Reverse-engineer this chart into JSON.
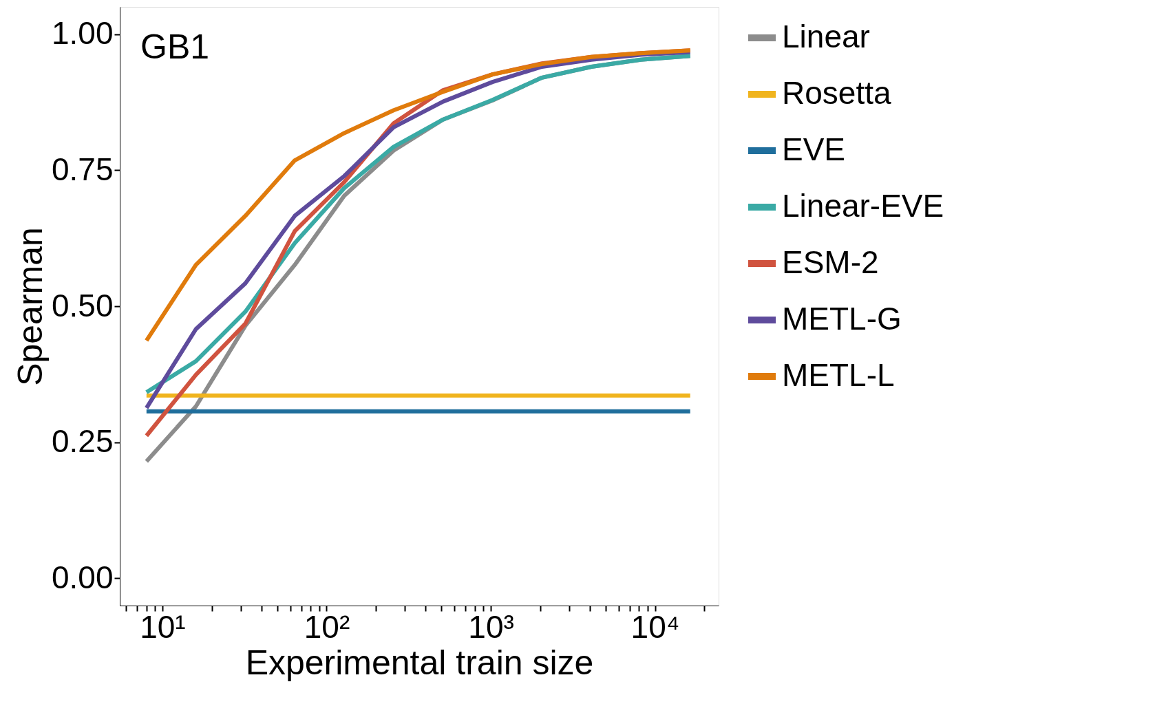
{
  "chart_data": {
    "type": "line",
    "xlabel": "Experimental train size",
    "ylabel": "Spearman",
    "annotations": [
      "GB1"
    ],
    "x": [
      8,
      16,
      32,
      64,
      128,
      256,
      512,
      1024,
      2048,
      4096,
      8192,
      16384
    ],
    "xlim": [
      5.5,
      24400
    ],
    "xticks": [
      {
        "value": 6,
        "label": null
      },
      {
        "value": 7,
        "label": null
      },
      {
        "value": 8,
        "label": null
      },
      {
        "value": 9,
        "label": null
      },
      {
        "value": 10,
        "label": "10¹"
      },
      {
        "value": 20,
        "label": null
      },
      {
        "value": 30,
        "label": null
      },
      {
        "value": 40,
        "label": null
      },
      {
        "value": 50,
        "label": null
      },
      {
        "value": 60,
        "label": null
      },
      {
        "value": 70,
        "label": null
      },
      {
        "value": 80,
        "label": null
      },
      {
        "value": 90,
        "label": null
      },
      {
        "value": 100,
        "label": "10²"
      },
      {
        "value": 200,
        "label": null
      },
      {
        "value": 300,
        "label": null
      },
      {
        "value": 400,
        "label": null
      },
      {
        "value": 500,
        "label": null
      },
      {
        "value": 600,
        "label": null
      },
      {
        "value": 700,
        "label": null
      },
      {
        "value": 800,
        "label": null
      },
      {
        "value": 900,
        "label": null
      },
      {
        "value": 1000,
        "label": "10³"
      },
      {
        "value": 2000,
        "label": null
      },
      {
        "value": 3000,
        "label": null
      },
      {
        "value": 4000,
        "label": null
      },
      {
        "value": 5000,
        "label": null
      },
      {
        "value": 6000,
        "label": null
      },
      {
        "value": 7000,
        "label": null
      },
      {
        "value": 8000,
        "label": null
      },
      {
        "value": 9000,
        "label": null
      },
      {
        "value": 10000,
        "label": "10⁴"
      },
      {
        "value": 20000,
        "label": null
      }
    ],
    "ylim": [
      -0.05,
      1.05
    ],
    "yticks": [
      {
        "value": 0,
        "label": "0.00"
      },
      {
        "value": 0.25,
        "label": "0.25"
      },
      {
        "value": 0.5,
        "label": "0.50"
      },
      {
        "value": 0.75,
        "label": "0.75"
      },
      {
        "value": 1,
        "label": "1.00"
      }
    ],
    "log": "x",
    "grid": false,
    "legend": "right",
    "series": [
      {
        "name": "Linear",
        "color": "#8c8c8c",
        "values": [
          0.215,
          0.316,
          0.464,
          0.576,
          0.703,
          0.786,
          0.843,
          0.878,
          0.92,
          0.94,
          0.953,
          0.96
        ]
      },
      {
        "name": "Rosetta",
        "color": "#f0b41e",
        "values": [
          0.336,
          0.336,
          0.336,
          0.336,
          0.336,
          0.336,
          0.336,
          0.336,
          0.336,
          0.336,
          0.336,
          0.336
        ]
      },
      {
        "name": "EVE",
        "color": "#1f6e9c",
        "values": [
          0.307,
          0.307,
          0.307,
          0.307,
          0.307,
          0.307,
          0.307,
          0.307,
          0.307,
          0.307,
          0.307,
          0.307
        ]
      },
      {
        "name": "Linear-EVE",
        "color": "#3aaaa5",
        "values": [
          0.342,
          0.399,
          0.49,
          0.616,
          0.717,
          0.793,
          0.843,
          0.879,
          0.92,
          0.94,
          0.953,
          0.96
        ]
      },
      {
        "name": "ESM-2",
        "color": "#d0533f",
        "values": [
          0.262,
          0.374,
          0.468,
          0.638,
          0.728,
          0.836,
          0.897,
          0.926,
          0.946,
          0.958,
          0.965,
          0.97
        ]
      },
      {
        "name": "METL-G",
        "color": "#5e4b9c",
        "values": [
          0.313,
          0.458,
          0.542,
          0.666,
          0.739,
          0.829,
          0.876,
          0.912,
          0.94,
          0.953,
          0.962,
          0.967
        ]
      },
      {
        "name": "METL-L",
        "color": "#e07b0c",
        "values": [
          0.437,
          0.576,
          0.666,
          0.768,
          0.818,
          0.86,
          0.894,
          0.926,
          0.945,
          0.958,
          0.965,
          0.97
        ]
      }
    ]
  }
}
